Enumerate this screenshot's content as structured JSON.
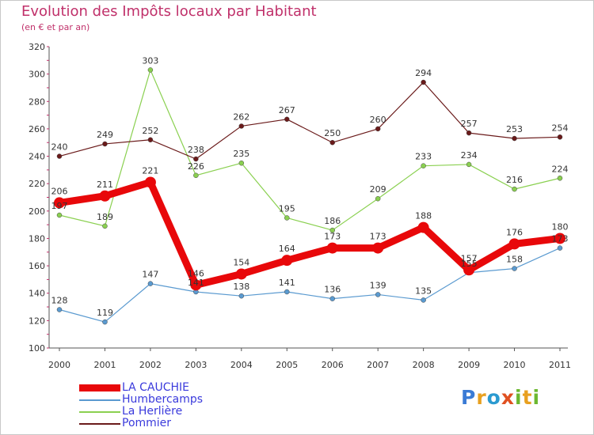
{
  "title": "Evolution des Impôts locaux par Habitant",
  "subtitle": "(en € et par an)",
  "logo": {
    "text": "Proxiti",
    "letters": [
      "P",
      "r",
      "o",
      "x",
      "i",
      "t",
      "i"
    ],
    "colors": [
      "#3a7bd5",
      "#e8a020",
      "#2a9ad0",
      "#e05020",
      "#6cb830",
      "#e8a020",
      "#6cb830"
    ]
  },
  "chart_data": {
    "type": "line",
    "x": [
      "2000",
      "2001",
      "2002",
      "2003",
      "2004",
      "2005",
      "2006",
      "2007",
      "2008",
      "2009",
      "2010",
      "2011"
    ],
    "ylim": [
      100,
      320
    ],
    "yticks": [
      100,
      120,
      140,
      160,
      180,
      200,
      220,
      240,
      260,
      280,
      300,
      320
    ],
    "grid": false,
    "legend": "bottom-left",
    "series": [
      {
        "name": "LA CAUCHIE",
        "color": "#e8080a",
        "width": 9,
        "marker": 7,
        "values": [
          206,
          211,
          221,
          146,
          154,
          164,
          173,
          173,
          188,
          157,
          176,
          180
        ],
        "labels": [
          "206",
          "211",
          "221",
          "146",
          "154",
          "164",
          "173",
          "173",
          "188",
          "157",
          "176",
          "180"
        ]
      },
      {
        "name": "Humbercamps",
        "color": "#5a9ad0",
        "width": 1.2,
        "marker": 3,
        "values": [
          128,
          119,
          147,
          141,
          138,
          141,
          136,
          139,
          135,
          155,
          158,
          173
        ],
        "labels": [
          "128",
          "119",
          "147",
          "141",
          "138",
          "141",
          "136",
          "139",
          "135",
          "155",
          "158",
          "173"
        ]
      },
      {
        "name": "La Herlière",
        "color": "#8ad050",
        "width": 1.2,
        "marker": 3,
        "values": [
          197,
          189,
          303,
          226,
          235,
          195,
          186,
          209,
          233,
          234,
          216,
          224
        ],
        "labels": [
          "197",
          "189",
          "303",
          "226",
          "235",
          "195",
          "186",
          "209",
          "233",
          "234",
          "216",
          "224"
        ]
      },
      {
        "name": "Pommier",
        "color": "#6a1a1a",
        "width": 1.2,
        "marker": 3,
        "values": [
          240,
          249,
          252,
          238,
          262,
          267,
          250,
          260,
          294,
          257,
          253,
          254
        ],
        "labels": [
          "240",
          "249",
          "252",
          "238",
          "262",
          "267",
          "250",
          "260",
          "294",
          "257",
          "253",
          "254"
        ]
      }
    ]
  }
}
